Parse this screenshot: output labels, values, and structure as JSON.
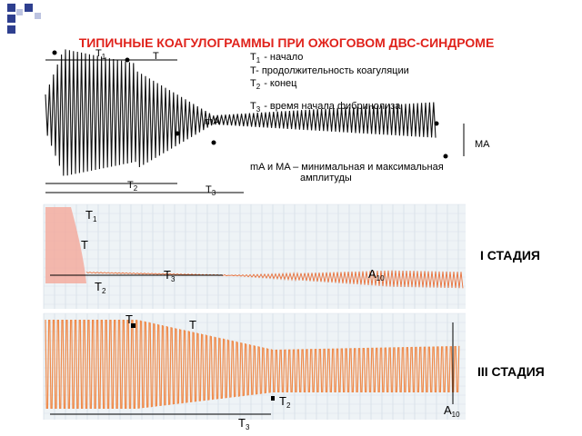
{
  "title": "ТИПИЧНЫЕ КОАГУЛОГРАММЫ ПРИ ОЖОГОВОМ ДВС-СИНДРОМЕ",
  "top_diagram": {
    "labels": {
      "t1": {
        "main": "T",
        "sub": "1"
      },
      "t": "T",
      "t2": {
        "main": "T",
        "sub": "2"
      },
      "t3": {
        "main": "T",
        "sub": "3"
      },
      "min_amp": "mA",
      "max_amp": "MA"
    },
    "legend": [
      {
        "term": "T",
        "sub": "1",
        "desc": "- начало"
      },
      {
        "term": "T",
        "desc": "- продолжительность коагуляции"
      },
      {
        "term": "T",
        "sub": "2",
        "desc": "- конец"
      },
      {
        "term": "T",
        "sub": "3",
        "desc": "- время начала фибринолиза"
      }
    ],
    "note": [
      "mA и MA – минимальная и максимальная",
      "амплитуды"
    ]
  },
  "stage1": {
    "title": "I СТАДИЯ",
    "labels": {
      "t1": {
        "main": "T",
        "sub": "1"
      },
      "t": "T",
      "t3": {
        "main": "T",
        "sub": "3"
      },
      "t2": {
        "main": "T",
        "sub": "2"
      },
      "a10": {
        "main": "A",
        "sub": "10"
      }
    }
  },
  "stage3": {
    "title": "III СТАДИЯ",
    "labels": {
      "t_left": "T",
      "t_right": "T",
      "t2": {
        "main": "T",
        "sub": "2"
      },
      "t3": {
        "main": "T",
        "sub": "3"
      },
      "a10": {
        "main": "A",
        "sub": "10"
      }
    }
  }
}
